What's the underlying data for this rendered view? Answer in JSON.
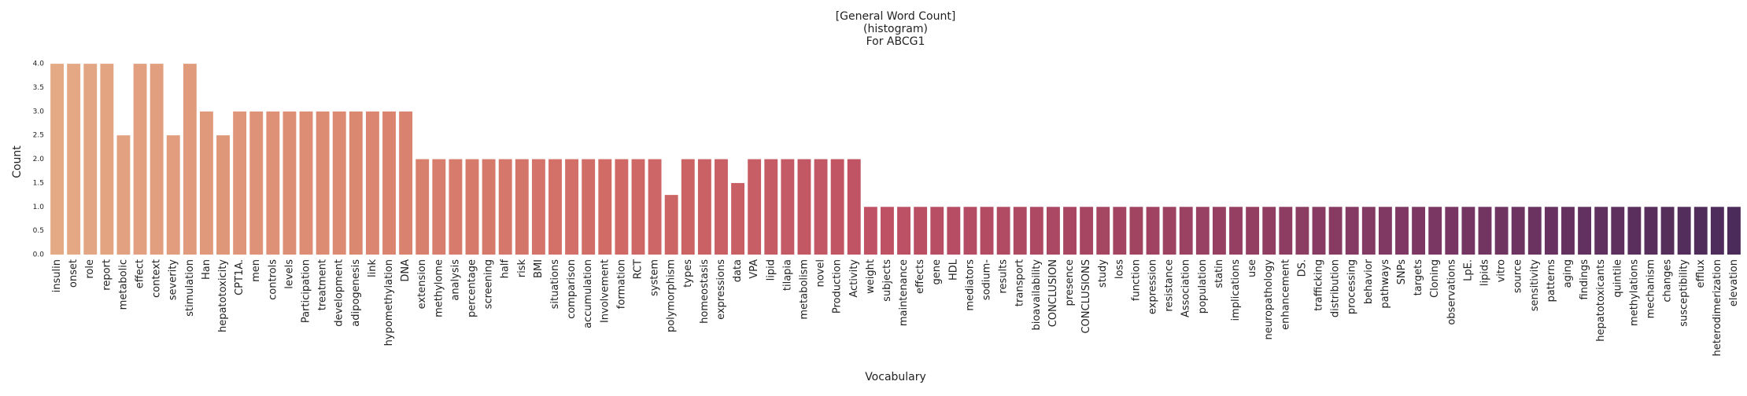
{
  "chart_data": {
    "type": "bar",
    "title": [
      "[General Word Count]",
      "(histogram)",
      "For ABCG1"
    ],
    "x_label": "Vocabulary",
    "y_label": "Count",
    "categories": [
      "insulin",
      "onset",
      "role",
      "report",
      "metabolic",
      "effect",
      "context",
      "severity",
      "stimulation",
      "Han",
      "hepatotoxicity",
      "CPT1A.",
      "men",
      "controls",
      "levels",
      "Participation",
      "treatment",
      "development",
      "adipogenesis",
      "link",
      "hypomethylation",
      "DNA",
      "extension",
      "methylome",
      "analysis",
      "percentage",
      "screening",
      "half",
      "risk",
      "BMI",
      "situations",
      "comparison",
      "accumulation",
      "Involvement",
      "formation",
      "RCT",
      "system",
      "polymorphism",
      "types",
      "homeostasis",
      "expressions",
      "data",
      "VPA",
      "lipid",
      "tilapia",
      "metabolism",
      "novel",
      "Production",
      "Activity",
      "weight",
      "subjects",
      "maintenance",
      "effects",
      "gene",
      "HDL",
      "mediators",
      "sodium-",
      "results",
      "transport",
      "bioavailability",
      "CONCLUSION",
      "presence",
      "CONCLUSIONS",
      "study",
      "loss",
      "function",
      "expression",
      "resistance",
      "Association",
      "population",
      "statin",
      "implications",
      "use",
      "neuropathology",
      "enhancement",
      "DS.",
      "trafficking",
      "distribution",
      "processing",
      "behavior",
      "pathways",
      "SNPs",
      "targets",
      "Cloning",
      "observations",
      "LpE.",
      "lipids",
      "vitro",
      "source",
      "sensitivity",
      "patterns",
      "aging",
      "findings",
      "hepatotoxicants",
      "quintile",
      "methylations",
      "mechanism",
      "changes",
      "susceptibility",
      "efflux",
      "heterodimerization",
      "elevation"
    ],
    "values": [
      4,
      4,
      4,
      4,
      2.5,
      4,
      4,
      2.5,
      4,
      3,
      2.5,
      3,
      3,
      3,
      3,
      3,
      3,
      3,
      3,
      3,
      3,
      3,
      2,
      2,
      2,
      2,
      2,
      2,
      2,
      2,
      2,
      2,
      2,
      2,
      2,
      2,
      2,
      1.25,
      2,
      2,
      2,
      1.5,
      2,
      2,
      2,
      2,
      2,
      2,
      2,
      1,
      1,
      1,
      1,
      1,
      1,
      1,
      1,
      1,
      1,
      1,
      1,
      1,
      1,
      1,
      1,
      1,
      1,
      1,
      1,
      1,
      1,
      1,
      1,
      1,
      1,
      1,
      1,
      1,
      1,
      1,
      1,
      1,
      1,
      1,
      1,
      1,
      1,
      1,
      1,
      1,
      1,
      1,
      1,
      1,
      1,
      1,
      1,
      1,
      1,
      1,
      1,
      1
    ],
    "palette": [
      "#e4aa86",
      "#dc8a72",
      "#d06a66",
      "#bd5064",
      "#9d4262",
      "#773663",
      "#4b2b5a"
    ],
    "ylim": [
      0,
      4.2
    ],
    "yticks": [
      {
        "value": 0,
        "label": "0.0"
      },
      0.5,
      {
        "value": 1,
        "label": "1.0"
      },
      1.5,
      {
        "value": 2,
        "label": "2.0"
      },
      2.5,
      {
        "value": 3,
        "label": "3.0"
      },
      3.5,
      {
        "value": 4,
        "label": "4.0"
      }
    ],
    "grid": false
  }
}
